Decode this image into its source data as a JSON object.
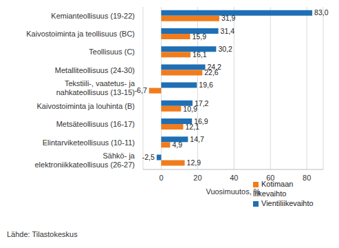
{
  "chart_data": {
    "type": "bar",
    "orientation": "horizontal",
    "categories": [
      "Kemianteollisuus (19-22)",
      "Kaivostoiminta ja teollisuus (BC)",
      "Teollisuus (C)",
      "Metalliteollisuus (24-30)",
      "Tekstiili-, vaatetus- ja\nnahkateollisuus (13-15)",
      "Kaivostoiminta ja louhinta (B)",
      "Metsäteollisuus (16-17)",
      "Elintarviketeollisuus (10-11)",
      "Sähkö- ja\nelektroniikkateollisuus (26-27)"
    ],
    "series": [
      {
        "name": "Vientiliikevaihto",
        "color": "#1f6fb4",
        "values": [
          83.0,
          31.4,
          30.2,
          24.2,
          19.6,
          17.2,
          16.9,
          14.7,
          -2.5
        ],
        "value_labels": [
          "83,0",
          "31,4",
          "30,2",
          "24,2",
          "19,6",
          "17,2",
          "16,9",
          "14,7",
          "-2,5"
        ]
      },
      {
        "name": "Kotimaan liikevaihto",
        "color": "#f07c1e",
        "values": [
          31.9,
          15.9,
          16.1,
          22.6,
          -6.7,
          10.9,
          12.1,
          4.9,
          12.9
        ],
        "value_labels": [
          "31,9",
          "15,9",
          "16,1",
          "22,6",
          "-6,7",
          "10,9",
          "12,1",
          "4,9",
          "12,9"
        ]
      }
    ],
    "xlabel": "Vuosimuutos, %",
    "xlim": [
      -10,
      89
    ],
    "xticks": [
      0,
      20,
      40,
      60,
      80
    ],
    "grid": true,
    "data_labels": true,
    "legend": "lower right",
    "source": "Lähde: Tilastokeskus"
  }
}
